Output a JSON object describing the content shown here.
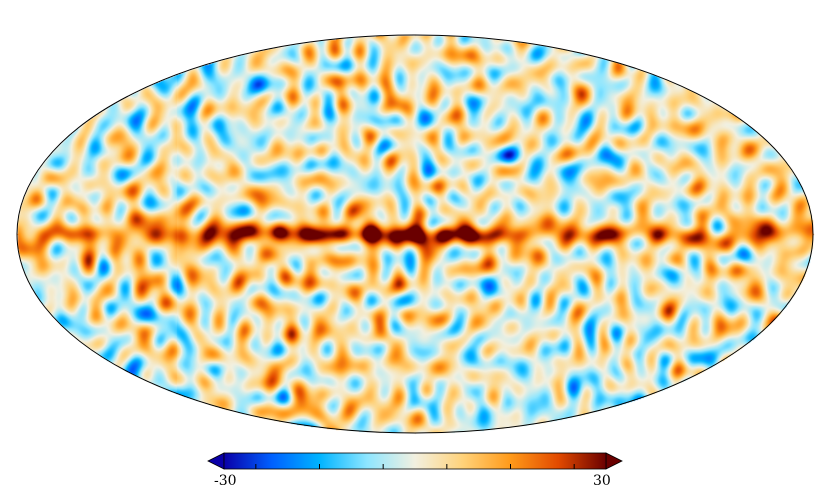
{
  "figure": {
    "kind": "mollweide-sky-map",
    "colormap_stops": [
      "#0a00a8",
      "#0060ff",
      "#00b4ff",
      "#8ee6ff",
      "#f2f0e0",
      "#ffd27a",
      "#ff9a1a",
      "#e24a00",
      "#6a0000"
    ]
  },
  "colorbar": {
    "min_label": "-30",
    "max_label": "30",
    "min_value": -30,
    "max_value": 30,
    "extend": "both",
    "tick_count": 6
  }
}
